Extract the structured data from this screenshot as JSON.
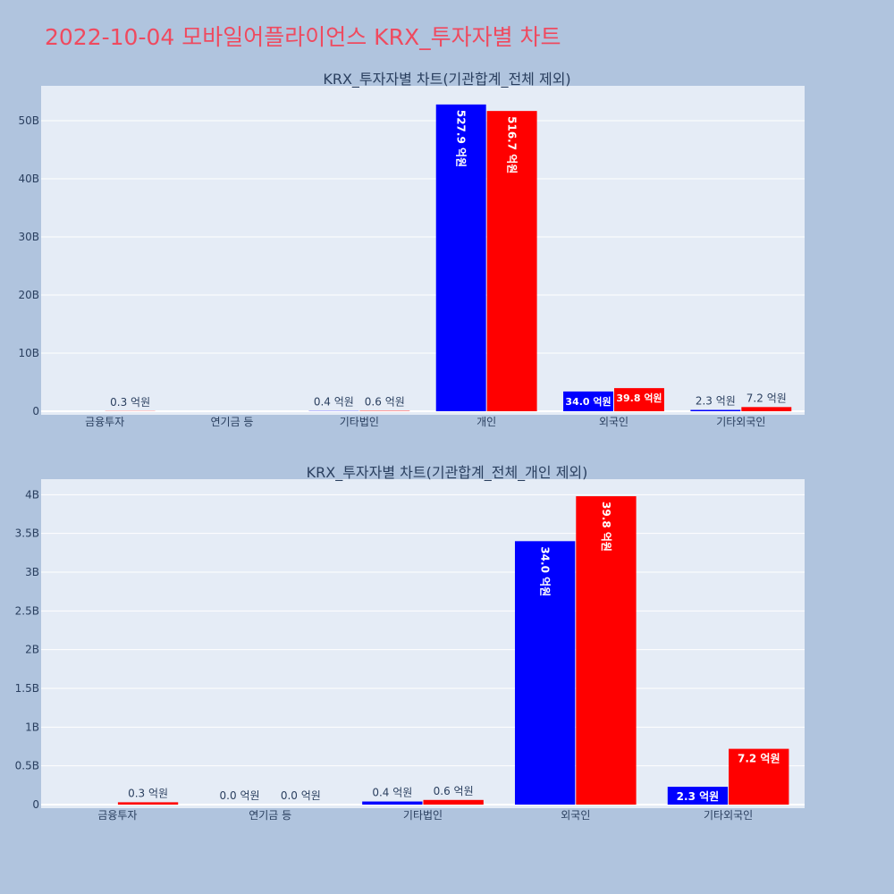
{
  "page": {
    "title": "2022-10-04 모바일어플라이언스 KRX_투자자별 차트"
  },
  "colors": {
    "background": "#b0c4de",
    "plot_bg": "#e5ecf6",
    "title": "#ef4a5f",
    "series_buy": "#0000ff",
    "series_sell": "#ff0000"
  },
  "chart_data": [
    {
      "type": "bar",
      "title": "KRX_투자자별 차트(기관합계_전체 제외)",
      "categories": [
        "금융투자",
        "연기금 등",
        "기타법인",
        "개인",
        "외국인",
        "기타외국인"
      ],
      "series": [
        {
          "color": "#0000ff",
          "values": [
            0,
            0,
            0.04,
            52.79,
            3.4,
            0.23
          ],
          "labels": [
            "",
            "",
            "0.4 억원",
            "527.9 억원",
            "34.0 억원",
            "2.3 억원"
          ]
        },
        {
          "color": "#ff0000",
          "values": [
            0.03,
            0,
            0.06,
            51.67,
            3.98,
            0.72
          ],
          "labels": [
            "0.3 억원",
            "",
            "0.6 억원",
            "516.7 억원",
            "39.8 억원",
            "7.2 억원"
          ]
        }
      ],
      "yticks": [
        0,
        10,
        20,
        30,
        40,
        50
      ],
      "ytick_labels": [
        "0",
        "10B",
        "20B",
        "30B",
        "40B",
        "50B"
      ],
      "ylim": [
        0,
        56
      ]
    },
    {
      "type": "bar",
      "title": "KRX_투자자별 차트(기관합계_전체_개인 제외)",
      "categories": [
        "금융투자",
        "연기금 등",
        "기타법인",
        "외국인",
        "기타외국인"
      ],
      "series": [
        {
          "color": "#0000ff",
          "values": [
            0,
            0,
            0.04,
            3.4,
            0.23
          ],
          "labels": [
            "",
            "0.0 억원",
            "0.4 억원",
            "34.0 억원",
            "2.3 억원"
          ]
        },
        {
          "color": "#ff0000",
          "values": [
            0.03,
            0,
            0.06,
            3.98,
            0.72
          ],
          "labels": [
            "0.3 억원",
            "0.0 억원",
            "0.6 억원",
            "39.8 억원",
            "7.2 억원"
          ]
        }
      ],
      "yticks": [
        0,
        0.5,
        1,
        1.5,
        2,
        2.5,
        3,
        3.5,
        4
      ],
      "ytick_labels": [
        "0",
        "0.5B",
        "1B",
        "1.5B",
        "2B",
        "2.5B",
        "3B",
        "3.5B",
        "4B"
      ],
      "ylim": [
        0,
        4.2
      ]
    }
  ]
}
